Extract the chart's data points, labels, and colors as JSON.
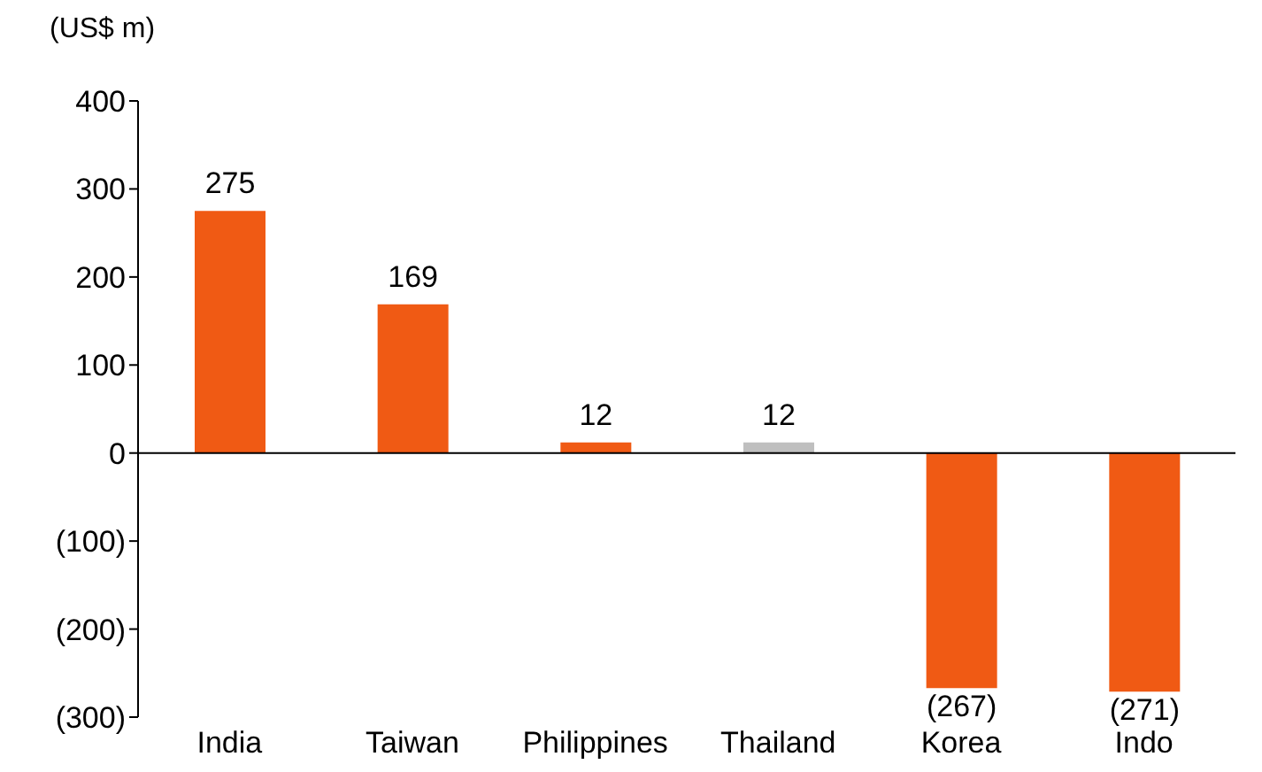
{
  "chart_data": {
    "type": "bar",
    "ylabel": "(US$ m)",
    "categories": [
      "India",
      "Taiwan",
      "Philippines",
      "Thailand",
      "Korea",
      "Indo"
    ],
    "values": [
      275,
      169,
      12,
      12,
      -267,
      -271
    ],
    "colors": [
      "#f05a14",
      "#f05a14",
      "#f05a14",
      "#bfbfbf",
      "#f05a14",
      "#f05a14"
    ],
    "value_labels": [
      "275",
      "169",
      "12",
      "12",
      "(267)",
      "(271)"
    ],
    "ylim": [
      -300,
      400
    ],
    "yticks": [
      {
        "value": -300,
        "label": "(300)"
      },
      {
        "value": -200,
        "label": "(200)"
      },
      {
        "value": -100,
        "label": "(100)"
      },
      0,
      100,
      200,
      300,
      400
    ],
    "legend": false
  }
}
